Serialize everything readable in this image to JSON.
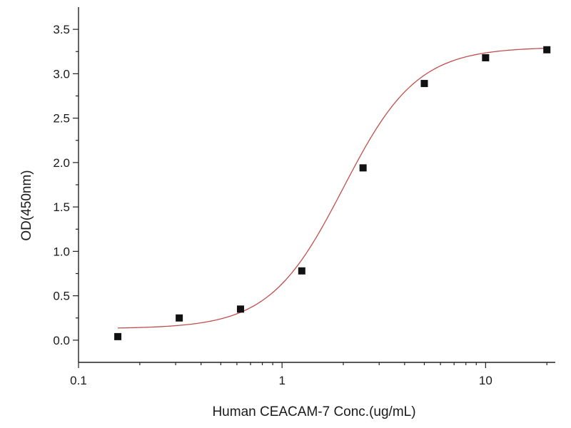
{
  "chart_data": {
    "type": "scatter",
    "title": "",
    "xlabel": "Human CEACAM-7 Conc.(ug/mL)",
    "ylabel": "OD(450nm)",
    "x_scale": "log",
    "xlim": [
      0.1,
      22
    ],
    "ylim": [
      -0.25,
      3.75
    ],
    "x_ticks": [
      0.1,
      1,
      10
    ],
    "x_tick_labels": [
      "0.1",
      "1",
      "10"
    ],
    "y_ticks": [
      0.0,
      0.5,
      1.0,
      1.5,
      2.0,
      2.5,
      3.0,
      3.5
    ],
    "y_tick_labels": [
      "0.0",
      "0.5",
      "1.0",
      "1.5",
      "2.0",
      "2.5",
      "3.0",
      "3.5"
    ],
    "grid": false,
    "series": [
      {
        "x": [
          0.156,
          0.3125,
          0.625,
          1.25,
          2.5,
          5,
          10,
          20
        ],
        "y": [
          0.04,
          0.25,
          0.35,
          0.78,
          1.94,
          2.89,
          3.18,
          3.27
        ],
        "marker": "square",
        "color": "#111111"
      }
    ],
    "fit_curve": {
      "model": "4PL",
      "bottom": 0.13,
      "top": 3.3,
      "ec50": 2.0,
      "hill": 2.4,
      "x_range": [
        0.156,
        20
      ],
      "color": "#c0504d"
    }
  }
}
